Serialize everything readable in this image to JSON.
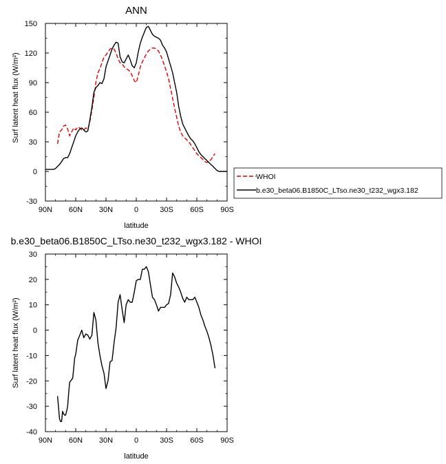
{
  "chart_data": [
    {
      "type": "line",
      "title": "ANN",
      "xlabel": "latitude",
      "ylabel": "Surf latent heat flux (W/m²)",
      "xlim": [
        -90,
        90
      ],
      "ylim": [
        -30,
        150
      ],
      "x_ticks": [
        -90,
        -60,
        -30,
        0,
        30,
        60,
        90
      ],
      "x_tick_labels": [
        "90N",
        "60N",
        "30N",
        "0",
        "30S",
        "60S",
        "90S"
      ],
      "y_ticks": [
        -30,
        0,
        30,
        60,
        90,
        120,
        150
      ],
      "y_tick_labels": [
        "-30",
        "0",
        "30",
        "60",
        "90",
        "120",
        "150"
      ],
      "grid": false,
      "legend_position": "right",
      "series": [
        {
          "name": "WHOI",
          "color": "#dd0000",
          "dash": "dashed",
          "x": [
            -78,
            -76,
            -74,
            -72,
            -70,
            -68,
            -66,
            -64,
            -62,
            -60,
            -58,
            -56,
            -54,
            -52,
            -50,
            -48,
            -46,
            -44,
            -42,
            -40,
            -38,
            -36,
            -34,
            -32,
            -30,
            -28,
            -26,
            -24,
            -22,
            -20,
            -18,
            -16,
            -14,
            -12,
            -10,
            -8,
            -6,
            -4,
            -2,
            0,
            2,
            4,
            6,
            8,
            10,
            12,
            14,
            16,
            18,
            20,
            22,
            24,
            26,
            28,
            30,
            32,
            34,
            36,
            38,
            40,
            42,
            44,
            46,
            48,
            50,
            52,
            54,
            56,
            58,
            60,
            62,
            64,
            66,
            68,
            70,
            72,
            74,
            76,
            78
          ],
          "y": [
            28,
            40,
            42,
            46,
            47,
            43,
            36,
            40,
            44,
            42,
            45,
            44,
            42,
            42,
            44,
            43,
            50,
            62,
            75,
            90,
            100,
            104,
            110,
            116,
            118,
            121,
            124,
            125,
            124,
            120,
            114,
            110,
            109,
            106,
            104,
            103,
            101,
            97,
            92,
            90,
            97,
            106,
            111,
            115,
            119,
            122,
            124,
            125,
            125,
            124,
            122,
            118,
            113,
            107,
            101,
            94,
            84,
            74,
            64,
            55,
            46,
            40,
            36,
            34,
            32,
            30,
            27,
            24,
            21,
            18,
            16,
            14,
            12,
            10,
            9,
            10,
            12,
            15,
            18
          ]
        },
        {
          "name": "b.e30_beta06.B1850C_LTso.ne30_t232_wgx3.182",
          "color": "#000000",
          "dash": "solid",
          "x": [
            -90,
            -86,
            -82,
            -80,
            -78,
            -76,
            -74,
            -72,
            -70,
            -68,
            -66,
            -64,
            -62,
            -60,
            -58,
            -56,
            -54,
            -52,
            -50,
            -48,
            -46,
            -44,
            -42,
            -40,
            -38,
            -36,
            -34,
            -32,
            -30,
            -28,
            -26,
            -24,
            -22,
            -20,
            -18,
            -16,
            -14,
            -12,
            -10,
            -8,
            -6,
            -4,
            -2,
            0,
            2,
            4,
            6,
            8,
            10,
            12,
            14,
            16,
            18,
            20,
            22,
            24,
            26,
            28,
            30,
            32,
            34,
            36,
            38,
            40,
            42,
            44,
            46,
            48,
            50,
            52,
            54,
            56,
            58,
            60,
            62,
            64,
            66,
            68,
            70,
            72,
            74,
            76,
            78,
            80,
            82,
            84,
            86,
            88,
            90
          ],
          "y": [
            2,
            2,
            2,
            3,
            5,
            7,
            10,
            13,
            14,
            14,
            18,
            24,
            30,
            36,
            40,
            43,
            44,
            42,
            40,
            41,
            52,
            65,
            80,
            85,
            87,
            90,
            89,
            94,
            106,
            112,
            118,
            124,
            128,
            131,
            130,
            116,
            111,
            110,
            114,
            118,
            113,
            107,
            105,
            110,
            121,
            130,
            136,
            141,
            146,
            147,
            143,
            139,
            137,
            136,
            135,
            133,
            128,
            125,
            121,
            114,
            107,
            100,
            90,
            80,
            66,
            56,
            48,
            44,
            40,
            36,
            33,
            31,
            28,
            24,
            20,
            17,
            15,
            13,
            11,
            9,
            7,
            5,
            3,
            1,
            0,
            0,
            0,
            0,
            0
          ]
        }
      ]
    },
    {
      "type": "line",
      "title": "b.e30_beta06.B1850C_LTso.ne30_t232_wgx3.182 - WHOI",
      "xlabel": "latitude",
      "ylabel": "Surf latent heat flux (W/m²)",
      "xlim": [
        -90,
        90
      ],
      "ylim": [
        -40,
        30
      ],
      "x_ticks": [
        -90,
        -60,
        -30,
        0,
        30,
        60,
        90
      ],
      "x_tick_labels": [
        "90N",
        "60N",
        "30N",
        "0",
        "30S",
        "60S",
        "90S"
      ],
      "y_ticks": [
        -40,
        -30,
        -20,
        -10,
        0,
        10,
        20,
        30
      ],
      "y_tick_labels": [
        "-40",
        "-30",
        "-20",
        "-10",
        "0",
        "10",
        "20",
        "30"
      ],
      "grid": false,
      "series": [
        {
          "color": "#000000",
          "x": [
            -78,
            -76,
            -75,
            -74,
            -73,
            -72,
            -71,
            -70,
            -69,
            -68,
            -67,
            -66,
            -65,
            -64,
            -63,
            -62,
            -61,
            -60,
            -58,
            -56,
            -54,
            -52,
            -50,
            -48,
            -46,
            -44,
            -42,
            -40,
            -38,
            -36,
            -34,
            -32,
            -30,
            -28,
            -26,
            -24,
            -22,
            -20,
            -18,
            -16,
            -14,
            -12,
            -10,
            -8,
            -6,
            -4,
            -2,
            0,
            2,
            4,
            6,
            8,
            10,
            12,
            14,
            16,
            18,
            20,
            22,
            24,
            26,
            28,
            30,
            32,
            34,
            36,
            38,
            40,
            42,
            44,
            46,
            48,
            50,
            52,
            54,
            56,
            58,
            60,
            62,
            64,
            66,
            68,
            70,
            72,
            74,
            76,
            78
          ],
          "y": [
            -26,
            -35,
            -36,
            -36,
            -32,
            -33,
            -33.5,
            -33.5,
            -32,
            -30,
            -25,
            -20.5,
            -20,
            -19.5,
            -19,
            -15,
            -11,
            -9.5,
            -4,
            -2,
            0,
            -3,
            -1.5,
            -2,
            -3.5,
            -2,
            7,
            4,
            -5,
            -10,
            -14,
            -17,
            -23,
            -20,
            -12.5,
            -12,
            -5,
            1,
            11,
            14,
            8,
            3,
            10,
            12,
            11,
            11,
            15,
            19.5,
            20,
            20,
            24,
            24,
            25,
            23,
            18,
            13,
            12,
            10,
            7.5,
            9,
            9,
            9,
            10,
            10.5,
            14,
            22.5,
            21,
            18.5,
            17,
            15,
            12.5,
            11,
            13,
            12,
            12,
            12,
            13,
            11,
            9,
            6,
            4,
            1.5,
            -0.5,
            -3,
            -6,
            -10,
            -15
          ]
        }
      ]
    }
  ]
}
